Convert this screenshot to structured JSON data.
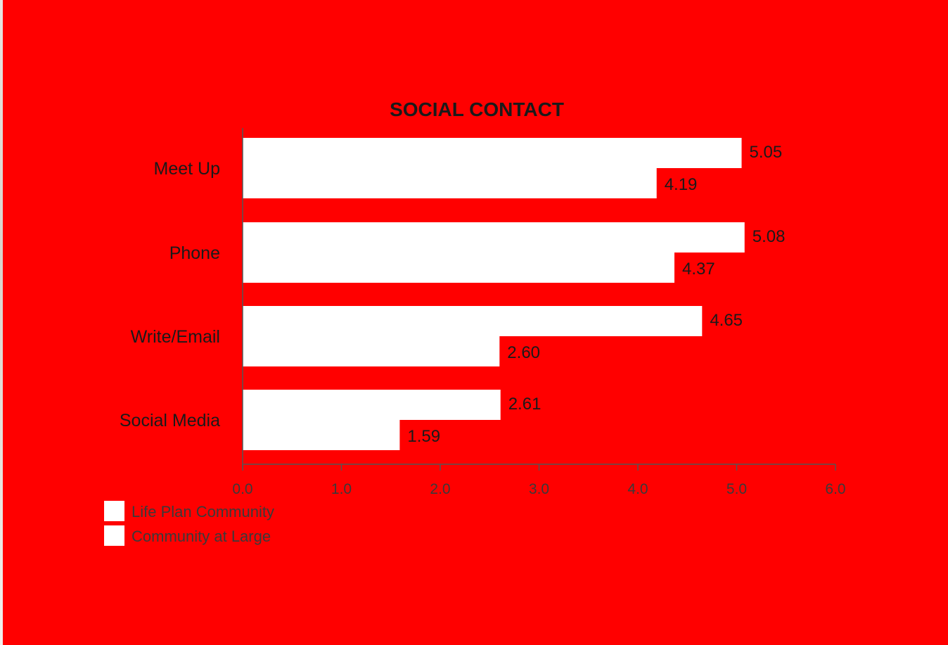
{
  "chart_data": {
    "type": "bar",
    "orientation": "horizontal",
    "title": "SOCIAL CONTACT",
    "categories": [
      "Meet Up",
      "Phone",
      "Write/Email",
      "Social Media"
    ],
    "series": [
      {
        "name": "Life Plan Community",
        "values": [
          5.05,
          5.08,
          4.65,
          2.61
        ],
        "labels": [
          "5.05",
          "5.08",
          "4.65",
          "2.61"
        ]
      },
      {
        "name": "Community at Large",
        "values": [
          4.19,
          4.37,
          2.6,
          1.59
        ],
        "labels": [
          "4.19",
          "4.37",
          "2.60",
          "1.59"
        ]
      }
    ],
    "xlim": [
      0,
      6
    ],
    "ticks": [
      "0.0",
      "1.0",
      "2.0",
      "3.0",
      "4.0",
      "5.0",
      "6.0"
    ],
    "legend_position": "bottom-left",
    "grid": false
  },
  "colors": {
    "background": "#ff0000",
    "bar_fill": "#ffffff",
    "axis": "#555555",
    "text": "#1a1a1a"
  }
}
